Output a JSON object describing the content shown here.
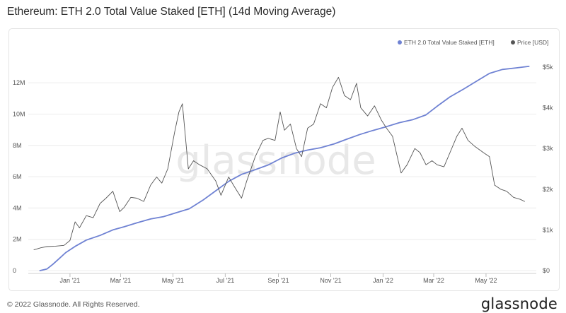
{
  "header": {
    "title": "Ethereum: ETH 2.0 Total Value Staked [ETH] (14d Moving Average)"
  },
  "footer": {
    "copyright": "© 2022 Glassnode. All Rights Reserved.",
    "brand": "glassnode"
  },
  "watermark": "glassnode",
  "colors": {
    "staked": "#6f82d3",
    "price": "#555555",
    "grid": "#ececec",
    "axis": "#9e9e9e"
  },
  "chart_data": {
    "type": "line",
    "title": "Ethereum: ETH 2.0 Total Value Staked [ETH] (14d Moving Average)",
    "x_axis": {
      "type": "date",
      "range": [
        "2020-11-20",
        "2022-06-22"
      ],
      "ticks": [
        {
          "date": "2021-01-01",
          "label": "Jan '21"
        },
        {
          "date": "2021-03-01",
          "label": "Mar '21"
        },
        {
          "date": "2021-05-01",
          "label": "May '21"
        },
        {
          "date": "2021-07-01",
          "label": "Jul '21"
        },
        {
          "date": "2021-09-01",
          "label": "Sep '21"
        },
        {
          "date": "2021-11-01",
          "label": "Nov '21"
        },
        {
          "date": "2022-01-01",
          "label": "Jan '22"
        },
        {
          "date": "2022-03-01",
          "label": "Mar '22"
        },
        {
          "date": "2022-05-01",
          "label": "May '22"
        }
      ]
    },
    "y_left": {
      "range": [
        0,
        13000000
      ],
      "ticks": [
        {
          "value": 0,
          "label": "0"
        },
        {
          "value": 2000000,
          "label": "2M"
        },
        {
          "value": 4000000,
          "label": "4M"
        },
        {
          "value": 6000000,
          "label": "6M"
        },
        {
          "value": 8000000,
          "label": "8M"
        },
        {
          "value": 10000000,
          "label": "10M"
        },
        {
          "value": 12000000,
          "label": "12M"
        }
      ]
    },
    "y_right": {
      "range": [
        0,
        5000
      ],
      "ticks": [
        {
          "value": 0,
          "label": "$0"
        },
        {
          "value": 1000,
          "label": "$1k"
        },
        {
          "value": 2000,
          "label": "$2k"
        },
        {
          "value": 3000,
          "label": "$3k"
        },
        {
          "value": 4000,
          "label": "$4k"
        },
        {
          "value": 5000,
          "label": "$5k"
        }
      ]
    },
    "legend": {
      "placement": "top-right"
    },
    "series": [
      {
        "name": "ETH 2.0 Total Value Staked [ETH]",
        "axis": "left",
        "color": "#6f82d3",
        "points": [
          [
            "2020-11-27",
            0
          ],
          [
            "2020-12-05",
            100000
          ],
          [
            "2020-12-12",
            400000
          ],
          [
            "2020-12-20",
            800000
          ],
          [
            "2020-12-27",
            1150000
          ],
          [
            "2021-01-07",
            1550000
          ],
          [
            "2021-01-20",
            1950000
          ],
          [
            "2021-02-05",
            2250000
          ],
          [
            "2021-02-20",
            2600000
          ],
          [
            "2021-03-05",
            2800000
          ],
          [
            "2021-03-20",
            3050000
          ],
          [
            "2021-04-05",
            3300000
          ],
          [
            "2021-04-20",
            3450000
          ],
          [
            "2021-05-05",
            3700000
          ],
          [
            "2021-05-20",
            3950000
          ],
          [
            "2021-06-05",
            4500000
          ],
          [
            "2021-06-20",
            5100000
          ],
          [
            "2021-07-05",
            5700000
          ],
          [
            "2021-07-20",
            6150000
          ],
          [
            "2021-08-05",
            6450000
          ],
          [
            "2021-08-20",
            6750000
          ],
          [
            "2021-09-05",
            7200000
          ],
          [
            "2021-09-20",
            7500000
          ],
          [
            "2021-10-05",
            7700000
          ],
          [
            "2021-10-20",
            7850000
          ],
          [
            "2021-11-05",
            8100000
          ],
          [
            "2021-11-20",
            8400000
          ],
          [
            "2021-12-05",
            8700000
          ],
          [
            "2021-12-20",
            8950000
          ],
          [
            "2022-01-05",
            9200000
          ],
          [
            "2022-01-20",
            9450000
          ],
          [
            "2022-02-05",
            9650000
          ],
          [
            "2022-02-20",
            9950000
          ],
          [
            "2022-03-05",
            10500000
          ],
          [
            "2022-03-20",
            11100000
          ],
          [
            "2022-04-05",
            11600000
          ],
          [
            "2022-04-20",
            12100000
          ],
          [
            "2022-05-05",
            12600000
          ],
          [
            "2022-05-20",
            12850000
          ],
          [
            "2022-06-05",
            12950000
          ],
          [
            "2022-06-20",
            13050000
          ]
        ]
      },
      {
        "name": "Price [USD]",
        "axis": "right",
        "color": "#555555",
        "points": [
          [
            "2020-11-20",
            510
          ],
          [
            "2020-11-28",
            560
          ],
          [
            "2020-12-05",
            590
          ],
          [
            "2020-12-15",
            600
          ],
          [
            "2020-12-25",
            620
          ],
          [
            "2021-01-01",
            740
          ],
          [
            "2021-01-07",
            1200
          ],
          [
            "2021-01-12",
            1050
          ],
          [
            "2021-01-20",
            1350
          ],
          [
            "2021-01-28",
            1300
          ],
          [
            "2021-02-05",
            1650
          ],
          [
            "2021-02-12",
            1780
          ],
          [
            "2021-02-20",
            1950
          ],
          [
            "2021-02-28",
            1450
          ],
          [
            "2021-03-05",
            1550
          ],
          [
            "2021-03-13",
            1800
          ],
          [
            "2021-03-20",
            1780
          ],
          [
            "2021-03-28",
            1700
          ],
          [
            "2021-04-05",
            2100
          ],
          [
            "2021-04-12",
            2300
          ],
          [
            "2021-04-18",
            2150
          ],
          [
            "2021-04-25",
            2500
          ],
          [
            "2021-05-03",
            3400
          ],
          [
            "2021-05-08",
            3900
          ],
          [
            "2021-05-12",
            4100
          ],
          [
            "2021-05-19",
            2500
          ],
          [
            "2021-05-25",
            2700
          ],
          [
            "2021-06-01",
            2600
          ],
          [
            "2021-06-10",
            2500
          ],
          [
            "2021-06-20",
            2200
          ],
          [
            "2021-06-26",
            1850
          ],
          [
            "2021-07-05",
            2300
          ],
          [
            "2021-07-12",
            2050
          ],
          [
            "2021-07-20",
            1780
          ],
          [
            "2021-07-26",
            2200
          ],
          [
            "2021-08-05",
            2800
          ],
          [
            "2021-08-14",
            3200
          ],
          [
            "2021-08-20",
            3250
          ],
          [
            "2021-08-28",
            3200
          ],
          [
            "2021-09-03",
            3900
          ],
          [
            "2021-09-08",
            3450
          ],
          [
            "2021-09-15",
            3600
          ],
          [
            "2021-09-22",
            3000
          ],
          [
            "2021-09-28",
            2800
          ],
          [
            "2021-10-05",
            3500
          ],
          [
            "2021-10-12",
            3600
          ],
          [
            "2021-10-20",
            4100
          ],
          [
            "2021-10-27",
            4000
          ],
          [
            "2021-11-03",
            4500
          ],
          [
            "2021-11-10",
            4750
          ],
          [
            "2021-11-17",
            4300
          ],
          [
            "2021-11-24",
            4200
          ],
          [
            "2021-12-01",
            4600
          ],
          [
            "2021-12-06",
            4000
          ],
          [
            "2021-12-14",
            3800
          ],
          [
            "2021-12-22",
            4050
          ],
          [
            "2021-12-30",
            3700
          ],
          [
            "2022-01-05",
            3500
          ],
          [
            "2022-01-12",
            3300
          ],
          [
            "2022-01-22",
            2400
          ],
          [
            "2022-01-29",
            2600
          ],
          [
            "2022-02-07",
            3000
          ],
          [
            "2022-02-13",
            2900
          ],
          [
            "2022-02-20",
            2600
          ],
          [
            "2022-02-27",
            2700
          ],
          [
            "2022-03-05",
            2600
          ],
          [
            "2022-03-13",
            2550
          ],
          [
            "2022-03-20",
            2900
          ],
          [
            "2022-03-28",
            3300
          ],
          [
            "2022-04-03",
            3500
          ],
          [
            "2022-04-10",
            3200
          ],
          [
            "2022-04-18",
            3050
          ],
          [
            "2022-04-28",
            2900
          ],
          [
            "2022-05-05",
            2800
          ],
          [
            "2022-05-11",
            2100
          ],
          [
            "2022-05-18",
            2000
          ],
          [
            "2022-05-25",
            1950
          ],
          [
            "2022-06-02",
            1800
          ],
          [
            "2022-06-10",
            1750
          ],
          [
            "2022-06-15",
            1700
          ]
        ]
      }
    ]
  }
}
